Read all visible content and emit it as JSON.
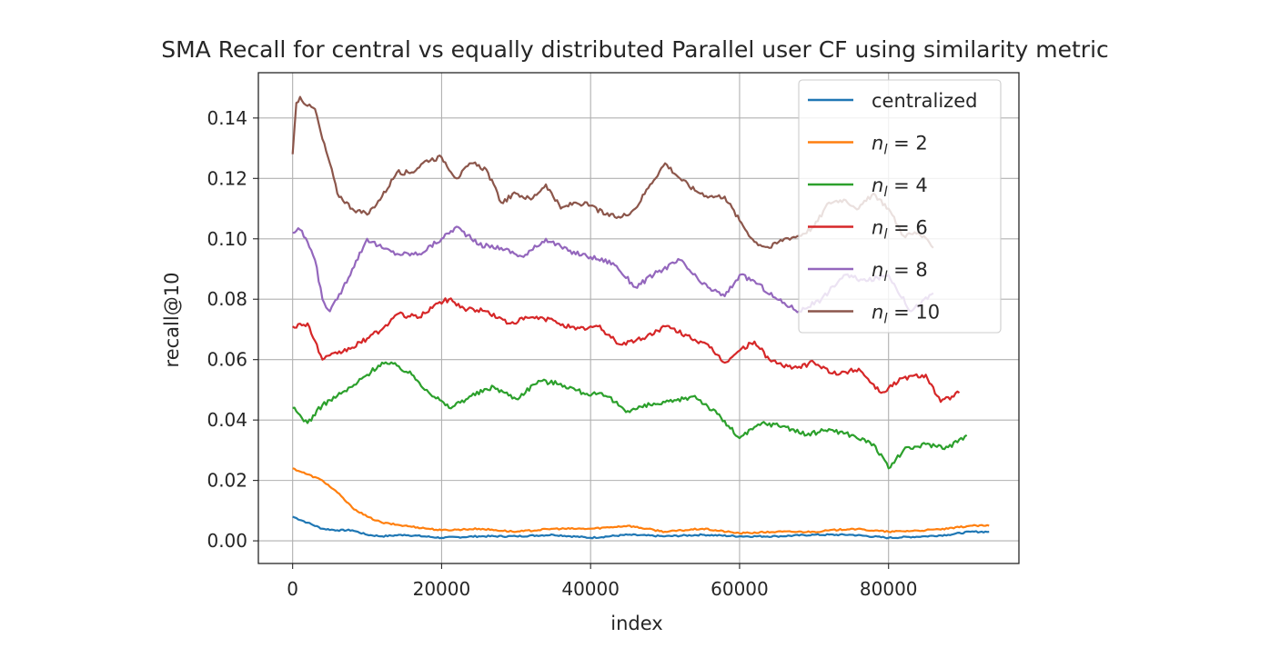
{
  "chart_data": {
    "type": "line",
    "title": "SMA Recall for central vs equally distributed Parallel user CF using similarity metric",
    "xlabel": "index",
    "ylabel": "recall@10",
    "xlim": [
      -4600,
      97500
    ],
    "ylim": [
      -0.0075,
      0.155
    ],
    "xticks": [
      0,
      20000,
      40000,
      60000,
      80000
    ],
    "yticks": [
      0.0,
      0.02,
      0.04,
      0.06,
      0.08,
      0.1,
      0.12,
      0.14
    ],
    "xtick_labels": [
      "0",
      "20000",
      "40000",
      "60000",
      "80000"
    ],
    "ytick_labels": [
      "0.00",
      "0.02",
      "0.04",
      "0.06",
      "0.08",
      "0.10",
      "0.12",
      "0.14"
    ],
    "grid": true,
    "legend_position": "top-right",
    "series": [
      {
        "name": "centralized",
        "color": "#1f77b4",
        "x": [
          0,
          2000,
          4000,
          6000,
          8000,
          10000,
          12000,
          15000,
          20000,
          25000,
          30000,
          35000,
          40000,
          45000,
          50000,
          55000,
          60000,
          65000,
          70000,
          75000,
          80000,
          85000,
          88000,
          91000,
          93500
        ],
        "values": [
          0.008,
          0.006,
          0.004,
          0.0035,
          0.0035,
          0.002,
          0.0015,
          0.002,
          0.001,
          0.0015,
          0.0015,
          0.002,
          0.001,
          0.002,
          0.0015,
          0.002,
          0.0015,
          0.0015,
          0.002,
          0.002,
          0.001,
          0.0015,
          0.002,
          0.003,
          0.003
        ]
      },
      {
        "name": "n_l = 2",
        "color": "#ff7f0e",
        "x": [
          0,
          2000,
          4000,
          6000,
          8000,
          10000,
          12000,
          15000,
          20000,
          25000,
          30000,
          35000,
          40000,
          45000,
          50000,
          55000,
          60000,
          65000,
          70000,
          75000,
          80000,
          85000,
          88000,
          91000,
          93500
        ],
        "values": [
          0.024,
          0.022,
          0.02,
          0.016,
          0.011,
          0.008,
          0.006,
          0.005,
          0.0035,
          0.004,
          0.003,
          0.004,
          0.004,
          0.005,
          0.003,
          0.004,
          0.0025,
          0.003,
          0.003,
          0.004,
          0.003,
          0.0035,
          0.004,
          0.005,
          0.005
        ]
      },
      {
        "name": "n_l = 4",
        "color": "#2ca02c",
        "x": [
          0,
          2000,
          4000,
          6000,
          8000,
          10000,
          12000,
          14000,
          16000,
          18000,
          21000,
          24000,
          27000,
          30000,
          33000,
          36000,
          39000,
          42000,
          45000,
          48000,
          51000,
          54000,
          57000,
          60000,
          63000,
          66000,
          69000,
          72000,
          75000,
          78000,
          80000,
          82000,
          85000,
          88000,
          90500
        ],
        "values": [
          0.044,
          0.039,
          0.045,
          0.048,
          0.051,
          0.055,
          0.059,
          0.058,
          0.055,
          0.05,
          0.044,
          0.048,
          0.051,
          0.047,
          0.053,
          0.052,
          0.049,
          0.048,
          0.043,
          0.045,
          0.046,
          0.048,
          0.042,
          0.034,
          0.039,
          0.038,
          0.035,
          0.037,
          0.035,
          0.032,
          0.024,
          0.03,
          0.032,
          0.031,
          0.035
        ]
      },
      {
        "name": "n_l = 6",
        "color": "#d62728",
        "x": [
          0,
          2000,
          4000,
          6000,
          8000,
          10000,
          12000,
          14000,
          17000,
          19000,
          21000,
          23000,
          26000,
          29000,
          32000,
          35000,
          38000,
          41000,
          44000,
          47000,
          50000,
          53000,
          56000,
          58000,
          60000,
          62000,
          64000,
          67000,
          70000,
          73000,
          76000,
          79000,
          82000,
          85000,
          87000,
          89500
        ],
        "values": [
          0.071,
          0.072,
          0.06,
          0.062,
          0.064,
          0.067,
          0.07,
          0.075,
          0.074,
          0.078,
          0.08,
          0.077,
          0.076,
          0.072,
          0.074,
          0.073,
          0.07,
          0.071,
          0.065,
          0.067,
          0.071,
          0.068,
          0.064,
          0.059,
          0.063,
          0.066,
          0.06,
          0.057,
          0.059,
          0.055,
          0.057,
          0.049,
          0.054,
          0.055,
          0.046,
          0.049
        ]
      },
      {
        "name": "n_l = 8",
        "color": "#9467bd",
        "x": [
          0,
          1000,
          2000,
          3000,
          4000,
          5000,
          6000,
          8000,
          10000,
          12000,
          14000,
          17000,
          20000,
          22000,
          25000,
          28000,
          31000,
          34000,
          37000,
          40000,
          43000,
          46000,
          49000,
          52000,
          55000,
          58000,
          60000,
          62000,
          65000,
          68000,
          71000,
          74000,
          77000,
          80000,
          83000,
          86000
        ],
        "values": [
          0.102,
          0.103,
          0.099,
          0.093,
          0.08,
          0.076,
          0.08,
          0.09,
          0.1,
          0.097,
          0.095,
          0.095,
          0.1,
          0.104,
          0.098,
          0.097,
          0.094,
          0.1,
          0.096,
          0.094,
          0.092,
          0.084,
          0.089,
          0.093,
          0.085,
          0.081,
          0.088,
          0.086,
          0.08,
          0.076,
          0.08,
          0.088,
          0.086,
          0.088,
          0.076,
          0.082
        ]
      },
      {
        "name": "n_l = 10",
        "color": "#8c564b",
        "x": [
          0,
          500,
          1000,
          2000,
          3000,
          4000,
          5000,
          6000,
          8000,
          10000,
          12000,
          14000,
          16000,
          18000,
          20000,
          22000,
          24000,
          26000,
          28000,
          30000,
          32000,
          34000,
          36000,
          38000,
          40000,
          42000,
          44000,
          46000,
          48000,
          50000,
          52000,
          54000,
          56000,
          58000,
          60000,
          62000,
          64000,
          66000,
          68000,
          70000,
          72000,
          74000,
          76000,
          78000,
          80000,
          82000,
          84000,
          86000
        ],
        "values": [
          0.128,
          0.145,
          0.147,
          0.144,
          0.143,
          0.133,
          0.125,
          0.115,
          0.11,
          0.108,
          0.114,
          0.122,
          0.122,
          0.126,
          0.127,
          0.12,
          0.125,
          0.123,
          0.112,
          0.115,
          0.113,
          0.118,
          0.11,
          0.112,
          0.111,
          0.108,
          0.107,
          0.11,
          0.118,
          0.125,
          0.12,
          0.116,
          0.114,
          0.114,
          0.106,
          0.099,
          0.097,
          0.1,
          0.101,
          0.104,
          0.112,
          0.113,
          0.11,
          0.115,
          0.11,
          0.101,
          0.102,
          0.097
        ]
      }
    ]
  }
}
